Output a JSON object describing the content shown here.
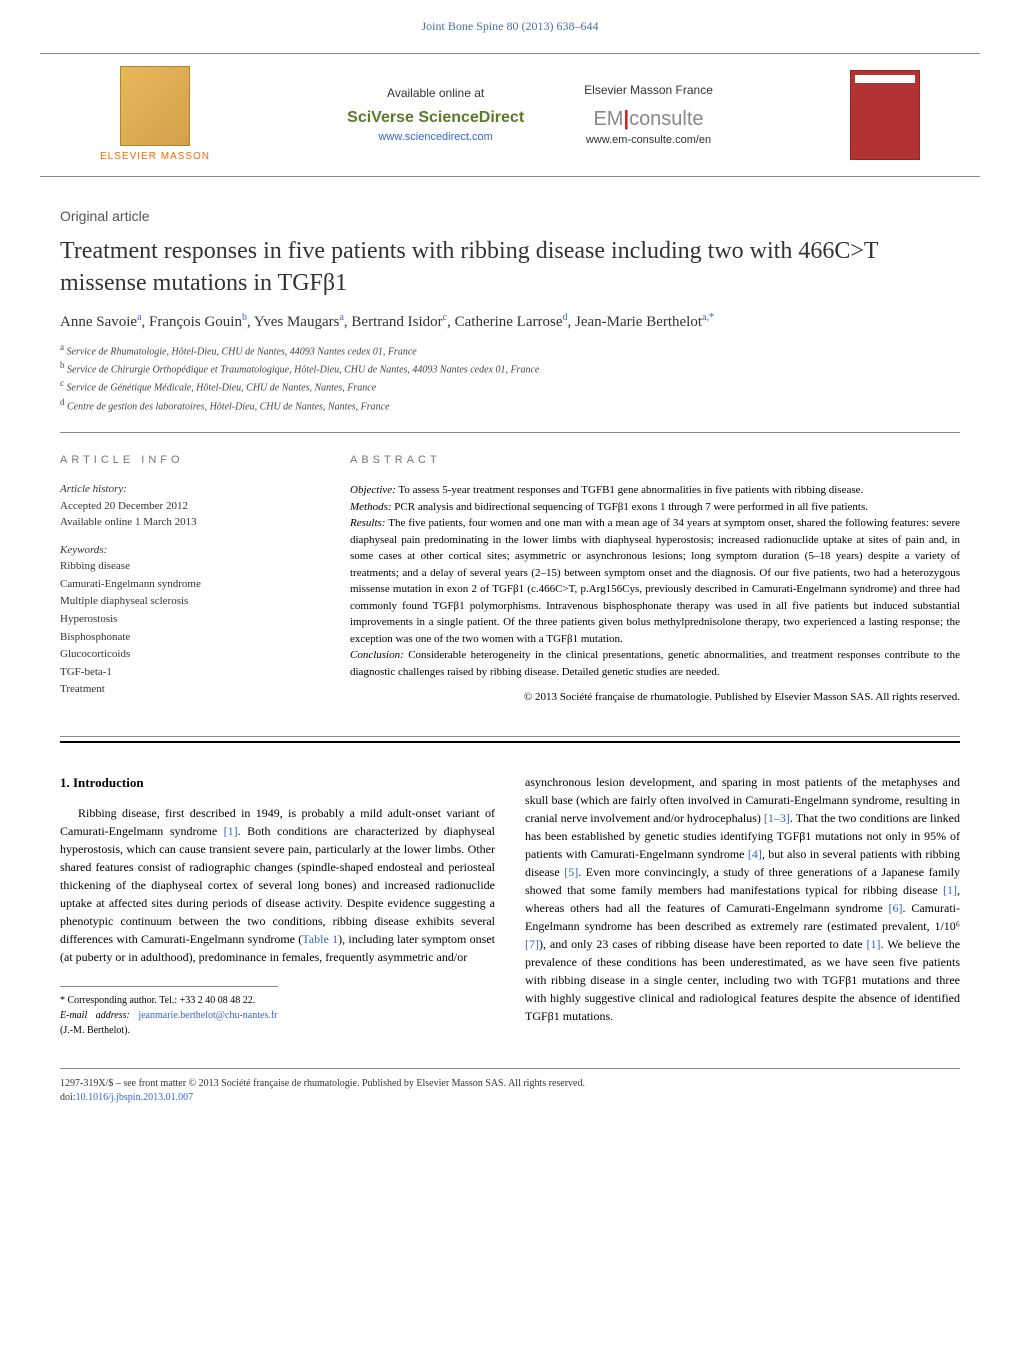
{
  "journal": {
    "citation": "Joint Bone Spine 80 (2013) 638–644",
    "header_color": "#4a6fa5"
  },
  "banner": {
    "elsevier_label": "ELSEVIER MASSON",
    "available": "Available online at",
    "sciverse": "SciVerse ScienceDirect",
    "sciverse_url": "www.sciencedirect.com",
    "em_france": "Elsevier Masson France",
    "emconsulte_prefix": "EM",
    "emconsulte_suffix": "consulte",
    "emconsulte_url": "www.em-consulte.com/en",
    "cover_label": "Joint Bone Spine"
  },
  "article": {
    "type": "Original article",
    "title": "Treatment responses in five patients with ribbing disease including two with 466C>T missense mutations in TGFβ1",
    "authors_html": "Anne Savoie<sup>a</sup>, François Gouin<sup>b</sup>, Yves Maugars<sup>a</sup>, Bertrand Isidor<sup>c</sup>, Catherine Larrose<sup>d</sup>, Jean-Marie Berthelot<sup>a,*</sup>",
    "affiliations": [
      "a  Service de Rhumatologie, Hôtel-Dieu, CHU de Nantes, 44093 Nantes cedex 01, France",
      "b  Service de Chirurgie Orthopédique et Traumatologique, Hôtel-Dieu, CHU de Nantes, 44093 Nantes cedex 01, France",
      "c  Service de Génétique Médicale, Hôtel-Dieu, CHU de Nantes, Nantes, France",
      "d  Centre de gestion des laboratoires, Hôtel-Dieu, CHU de Nantes, Nantes, France"
    ]
  },
  "info": {
    "heading": "ARTICLE INFO",
    "history_label": "Article history:",
    "accepted": "Accepted 20 December 2012",
    "online": "Available online 1 March 2013",
    "keywords_label": "Keywords:",
    "keywords": [
      "Ribbing disease",
      "Camurati-Engelmann syndrome",
      "Multiple diaphyseal sclerosis",
      "Hyperostosis",
      "Bisphosphonate",
      "Glucocorticoids",
      "TGF-beta-1",
      "Treatment"
    ]
  },
  "abstract": {
    "heading": "ABSTRACT",
    "objective_label": "Objective:",
    "objective": " To assess 5-year treatment responses and TGFB1 gene abnormalities in five patients with ribbing disease.",
    "methods_label": "Methods:",
    "methods": " PCR analysis and bidirectional sequencing of TGFβ1 exons 1 through 7 were performed in all five patients.",
    "results_label": "Results:",
    "results": " The five patients, four women and one man with a mean age of 34 years at symptom onset, shared the following features: severe diaphyseal pain predominating in the lower limbs with diaphyseal hyperostosis; increased radionuclide uptake at sites of pain and, in some cases at other cortical sites; asymmetric or asynchronous lesions; long symptom duration (5–18 years) despite a variety of treatments; and a delay of several years (2–15) between symptom onset and the diagnosis. Of our five patients, two had a heterozygous missense mutation in exon 2 of TGFβ1 (c.466C>T, p.Arg156Cys, previously described in Camurati-Engelmann syndrome) and three had commonly found TGFβ1 polymorphisms. Intravenous bisphosphonate therapy was used in all five patients but induced substantial improvements in a single patient. Of the three patients given bolus methylprednisolone therapy, two experienced a lasting response; the exception was one of the two women with a TGFβ1 mutation.",
    "conclusion_label": "Conclusion:",
    "conclusion": " Considerable heterogeneity in the clinical presentations, genetic abnormalities, and treatment responses contribute to the diagnostic challenges raised by ribbing disease. Detailed genetic studies are needed.",
    "copyright": "© 2013 Société française de rhumatologie. Published by Elsevier Masson SAS. All rights reserved."
  },
  "body": {
    "section_number": "1.",
    "section_title": " Introduction",
    "col1_p1": "Ribbing disease, first described in 1949, is probably a mild adult-onset variant of Camurati-Engelmann syndrome [1]. Both conditions are characterized by diaphyseal hyperostosis, which can cause transient severe pain, particularly at the lower limbs. Other shared features consist of radiographic changes (spindle-shaped endosteal and periosteal thickening of the diaphyseal cortex of several long bones) and increased radionuclide uptake at affected sites during periods of disease activity. Despite evidence suggesting a phenotypic continuum between the two conditions, ribbing disease exhibits several differences with Camurati-Engelmann syndrome (Table 1), including later symptom onset (at puberty or in adulthood), predominance in females, frequently asymmetric and/or",
    "col2_p1": "asynchronous lesion development, and sparing in most patients of the metaphyses and skull base (which are fairly often involved in Camurati-Engelmann syndrome, resulting in cranial nerve involvement and/or hydrocephalus) [1–3]. That the two conditions are linked has been established by genetic studies identifying TGFβ1 mutations not only in 95% of patients with Camurati-Engelmann syndrome [4], but also in several patients with ribbing disease [5]. Even more convincingly, a study of three generations of a Japanese family showed that some family members had manifestations typical for ribbing disease [1], whereas others had all the features of Camurati-Engelmann syndrome [6]. Camurati-Engelmann syndrome has been described as extremely rare (estimated prevalent, 1/10⁶ [7]), and only 23 cases of ribbing disease have been reported to date [1]. We believe the prevalence of these conditions has been underestimated, as we have seen five patients with ribbing disease in a single center, including two with TGFβ1 mutations and three with highly suggestive clinical and radiological features despite the absence of identified TGFβ1 mutations."
  },
  "corresponding": {
    "label": "* Corresponding author. Tel.: +33 2 40 08 48 22.",
    "email_label": "E-mail address: ",
    "email": "jeanmarie.berthelot@chu-nantes.fr",
    "email_name": " (J.-M. Berthelot)."
  },
  "footer": {
    "issn": "1297-319X/$ – see front matter © 2013 Société française de rhumatologie. Published by Elsevier Masson SAS. All rights reserved.",
    "doi_label": "doi:",
    "doi": "10.1016/j.jbspin.2013.01.007"
  },
  "colors": {
    "link": "#3366cc",
    "header": "#4a6fa5",
    "elsevier_orange": "#ff6600",
    "sciverse_green": "#5a7a2a",
    "cover_red": "#b33333"
  }
}
